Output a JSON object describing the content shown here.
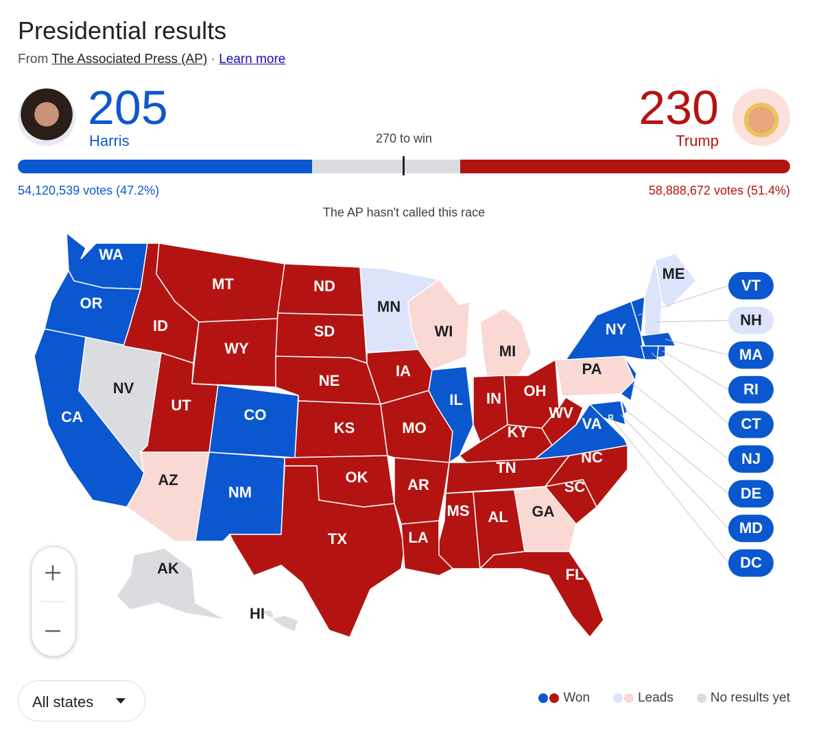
{
  "header": {
    "title": "Presidential results",
    "source_prefix": "From",
    "source": "The Associated Press (AP)",
    "separator": "·",
    "learn_more": "Learn more"
  },
  "candidates": [
    {
      "name": "Harris",
      "electoral_votes": 205,
      "votes": "54,120,539 votes (47.2%)",
      "color": "#0b57d0"
    },
    {
      "name": "Trump",
      "electoral_votes": 230,
      "votes": "58,888,672 votes (51.4%)",
      "color": "#b31412"
    }
  ],
  "threshold": "270 to win",
  "status": "The AP hasn't called this race",
  "map": {
    "states": [
      {
        "label": "WA",
        "color": "#0b57d0"
      },
      {
        "label": "OR",
        "color": "#0b57d0"
      },
      {
        "label": "CA",
        "color": "#0b57d0"
      },
      {
        "label": "NV",
        "color": "#dadce0"
      },
      {
        "label": "ID",
        "color": "#b31412"
      },
      {
        "label": "MT",
        "color": "#b31412"
      },
      {
        "label": "WY",
        "color": "#b31412"
      },
      {
        "label": "UT",
        "color": "#b31412"
      },
      {
        "label": "CO",
        "color": "#0b57d0"
      },
      {
        "label": "AZ",
        "color": "#fad8d4"
      },
      {
        "label": "NM",
        "color": "#0b57d0"
      },
      {
        "label": "ND",
        "color": "#b31412"
      },
      {
        "label": "SD",
        "color": "#b31412"
      },
      {
        "label": "NE",
        "color": "#b31412"
      },
      {
        "label": "KS",
        "color": "#b31412"
      },
      {
        "label": "OK",
        "color": "#b31412"
      },
      {
        "label": "TX",
        "color": "#b31412"
      },
      {
        "label": "MN",
        "color": "#dde3fb"
      },
      {
        "label": "IA",
        "color": "#b31412"
      },
      {
        "label": "MO",
        "color": "#b31412"
      },
      {
        "label": "AR",
        "color": "#b31412"
      },
      {
        "label": "LA",
        "color": "#b31412"
      },
      {
        "label": "WI",
        "color": "#fad8d4"
      },
      {
        "label": "IL",
        "color": "#0b57d0"
      },
      {
        "label": "MI",
        "color": "#fad8d4"
      },
      {
        "label": "IN",
        "color": "#b31412"
      },
      {
        "label": "OH",
        "color": "#b31412"
      },
      {
        "label": "KY",
        "color": "#b31412"
      },
      {
        "label": "TN",
        "color": "#b31412"
      },
      {
        "label": "MS",
        "color": "#b31412"
      },
      {
        "label": "AL",
        "color": "#b31412"
      },
      {
        "label": "GA",
        "color": "#fad8d4"
      },
      {
        "label": "FL",
        "color": "#b31412"
      },
      {
        "label": "SC",
        "color": "#b31412"
      },
      {
        "label": "NC",
        "color": "#b31412"
      },
      {
        "label": "VA",
        "color": "#0b57d0"
      },
      {
        "label": "WV",
        "color": "#b31412"
      },
      {
        "label": "PA",
        "color": "#fad8d4"
      },
      {
        "label": "NY",
        "color": "#0b57d0"
      },
      {
        "label": "ME",
        "color": "#dde3fb"
      },
      {
        "label": "AK",
        "color": "#dadce0"
      },
      {
        "label": "HI",
        "color": "#dadce0"
      },
      {
        "label": "VT",
        "color": "#0b57d0"
      },
      {
        "label": "NH",
        "color": "#dde3fb"
      },
      {
        "label": "MA",
        "color": "#0b57d0"
      },
      {
        "label": "RI",
        "color": "#0b57d0"
      },
      {
        "label": "CT",
        "color": "#0b57d0"
      },
      {
        "label": "NJ",
        "color": "#0b57d0"
      },
      {
        "label": "DE",
        "color": "#0b57d0"
      },
      {
        "label": "MD",
        "color": "#0b57d0"
      },
      {
        "label": "DC",
        "color": "#0b57d0"
      }
    ]
  },
  "filter": "All states",
  "legend": [
    "Won",
    "Leads",
    "No results yet"
  ]
}
